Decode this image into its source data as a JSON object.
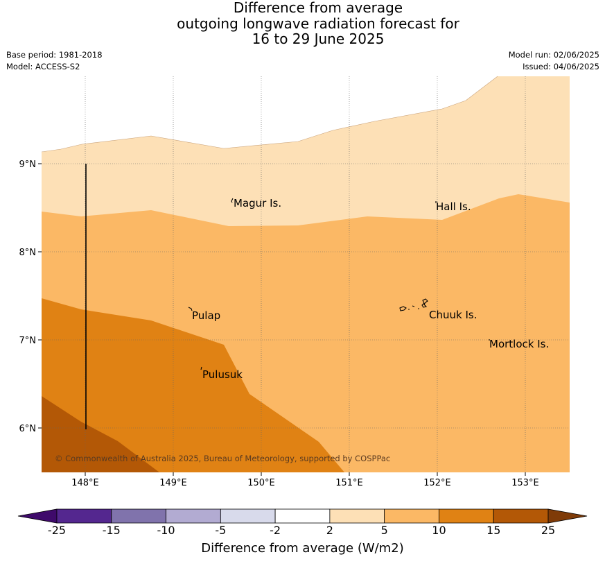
{
  "title": {
    "line1": "Difference from average",
    "line2": "outgoing longwave radiation forecast for",
    "line3": "16 to 29 June 2025"
  },
  "meta_left": {
    "base_period": "Base period: 1981-2018",
    "model": "Model: ACCESS-S2"
  },
  "meta_right": {
    "model_run": "Model run: 02/06/2025",
    "issued": "Issued: 04/06/2025"
  },
  "map": {
    "lon_labels": [
      "148°E",
      "149°E",
      "150°E",
      "151°E",
      "152°E",
      "153°E"
    ],
    "lat_labels": [
      "9°N",
      "8°N",
      "7°N",
      "6°N"
    ],
    "places": [
      "Magur Is.",
      "Hall Is.",
      "Pulap",
      "Chuuk Is.",
      "Mortlock Is.",
      "Pulusuk"
    ],
    "copyright": "© Commonwealth of Australia 2025, Bureau of Meteorology, supported by COSPPac"
  },
  "colorbar": {
    "ticks": [
      "-25",
      "-15",
      "-10",
      "-5",
      "-2",
      "2",
      "5",
      "10",
      "15",
      "25"
    ],
    "colors": [
      "#3f0a6b",
      "#54278f",
      "#8073ac",
      "#b2abd2",
      "#d8daeb",
      "#ffffff",
      "#fde0b6",
      "#fbb865",
      "#e08214",
      "#b35806",
      "#7f3b08"
    ],
    "label": "Difference from average (W/m2)"
  }
}
